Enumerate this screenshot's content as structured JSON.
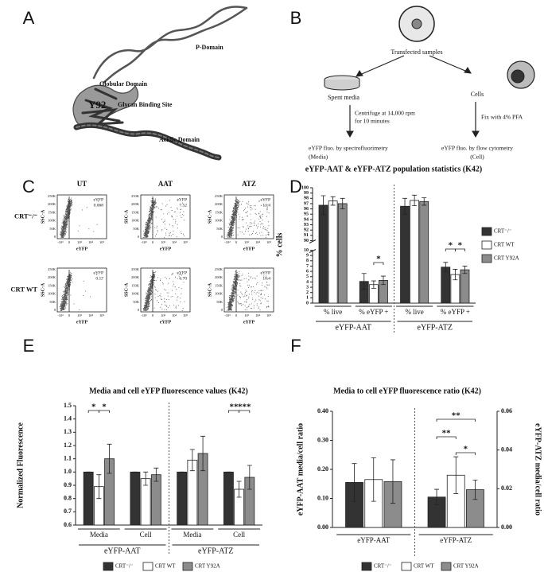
{
  "panel_labels": [
    "A",
    "B",
    "C",
    "D",
    "E",
    "F"
  ],
  "structure": {
    "domains": [
      "P-Domain",
      "Globular Domain",
      "Glycan Binding Site",
      "Acidic Domain"
    ],
    "residue": "Y92"
  },
  "workflow": {
    "start": "Transfected samples",
    "left": {
      "label": "Spent media",
      "step": [
        "Centrifuge at 14,000 rpm",
        "for 10 minutes"
      ],
      "readout": [
        "eYFP fluo. by spectrofluorimetry",
        "(Media)"
      ]
    },
    "right": {
      "label": "Cells",
      "step": [
        "Fix with 4% PFA"
      ],
      "readout": [
        "eYFP fluo. by flow cytometry",
        "(Cell)"
      ]
    }
  },
  "flow_cytometry": {
    "columns": [
      "UT",
      "AAT",
      "ATZ"
    ],
    "rows": [
      "CRT⁻/⁻",
      "CRT WT"
    ],
    "y_label": "SSC-A",
    "x_label": "eYFP",
    "gate_label": "eYFP",
    "y_ticks": [
      "250K",
      "200K",
      "150K",
      "100K",
      "50K",
      "0"
    ],
    "x_ticks": [
      "-10³",
      "0",
      "10³",
      "10⁴",
      "10⁵"
    ],
    "gate_values": [
      [
        "0.068",
        "7.52",
        "13.4"
      ],
      [
        "0.17",
        "6.70",
        "10.4"
      ]
    ]
  },
  "chart_data": [
    {
      "type": "bar",
      "title": "eYFP-AAT & eYFP-ATZ population statistics (K42)",
      "y_label": "% cells",
      "categories": [
        "% live",
        "% eYFP +",
        "% live",
        "% eYFP +"
      ],
      "groups": [
        "eYFP-AAT",
        "eYFP-ATZ"
      ],
      "series": [
        {
          "name": "CRT⁻/⁻",
          "color": "#333333",
          "values": [
            96.7,
            4.1,
            96.5,
            6.8
          ],
          "errors": [
            1.8,
            1.5,
            1.5,
            0.9
          ]
        },
        {
          "name": "CRT WT",
          "color": "#ffffff",
          "values": [
            97.5,
            3.5,
            97.6,
            5.4
          ],
          "errors": [
            0.8,
            0.7,
            1.0,
            1.0
          ]
        },
        {
          "name": "CRT Y92A",
          "color": "#8c8c8c",
          "values": [
            97.0,
            4.3,
            97.4,
            6.3
          ],
          "errors": [
            1.0,
            0.8,
            0.7,
            0.7
          ]
        }
      ],
      "ylim": [
        0,
        100
      ],
      "axis_break": [
        10,
        90
      ],
      "yticks": [
        0,
        1,
        2,
        3,
        4,
        5,
        6,
        7,
        8,
        9,
        10,
        90,
        91,
        92,
        93,
        94,
        95,
        96,
        97,
        98,
        99,
        100
      ],
      "significance": [
        "*",
        "*",
        "*"
      ],
      "legend": "right"
    },
    {
      "type": "bar",
      "title": "Media and cell eYFP fluorescence values (K42)",
      "y_label": "Normalized Fluorescence",
      "categories": [
        "Media",
        "Cell",
        "Media",
        "Cell"
      ],
      "groups": [
        "eYFP-AAT",
        "eYFP-ATZ"
      ],
      "series": [
        {
          "name": "CRT⁻/⁻",
          "color": "#333333",
          "values": [
            1,
            1,
            1,
            1
          ],
          "errors": [
            0,
            0,
            0,
            0
          ]
        },
        {
          "name": "CRT WT",
          "color": "#ffffff",
          "values": [
            0.89,
            0.95,
            1.09,
            0.87
          ],
          "errors": [
            0.09,
            0.05,
            0.08,
            0.06
          ]
        },
        {
          "name": "CRT Y92A",
          "color": "#8c8c8c",
          "values": [
            1.1,
            0.98,
            1.14,
            0.96
          ],
          "errors": [
            0.11,
            0.05,
            0.13,
            0.09
          ]
        }
      ],
      "ylim": [
        0.6,
        1.5
      ],
      "yticks": [
        0.6,
        0.7,
        0.8,
        0.9,
        {
          "value": 1,
          "label": "1.0"
        },
        1.1,
        1.2,
        1.3,
        1.4,
        1.5
      ],
      "significance": [
        "*",
        "*",
        "**",
        "***"
      ],
      "legend": "bottom"
    },
    {
      "type": "bar",
      "title": "Media to cell eYFP fluorescence ratio (K42)",
      "y_label": "eYFP-AAT media/cell ratio",
      "y2_label": "eYFP-ATZ media/cell ratio",
      "categories": [
        "eYFP-AAT",
        "eYFP-ATZ"
      ],
      "category_axis": [
        "y",
        "y2"
      ],
      "series": [
        {
          "name": "CRT⁻/⁻",
          "color": "#333333",
          "values": [
            0.155,
            0.0157
          ],
          "errors": [
            0.065,
            0.004
          ]
        },
        {
          "name": "CRT WT",
          "color": "#ffffff",
          "values": [
            0.165,
            0.027
          ],
          "errors": [
            0.075,
            0.0095
          ]
        },
        {
          "name": "CRT Y92A",
          "color": "#8c8c8c",
          "values": [
            0.158,
            0.0195
          ],
          "errors": [
            0.075,
            0.005
          ]
        }
      ],
      "ylim": [
        0,
        0.4
      ],
      "yticks": [
        {
          "value": 0,
          "label": "0.00"
        },
        {
          "value": 0.1,
          "label": "0.10"
        },
        {
          "value": 0.2,
          "label": "0.20"
        },
        {
          "value": 0.3,
          "label": "0.30"
        },
        {
          "value": 0.4,
          "label": "0.40"
        }
      ],
      "y2lim": [
        0,
        0.06
      ],
      "y2ticks": [
        {
          "value": 0,
          "label": "0.00"
        },
        {
          "value": 0.02,
          "label": "0.02"
        },
        {
          "value": 0.04,
          "label": "0.04"
        },
        {
          "value": 0.06,
          "label": "0.06"
        }
      ],
      "significance": [
        "**",
        "**",
        "*"
      ],
      "legend": "bottom"
    }
  ]
}
